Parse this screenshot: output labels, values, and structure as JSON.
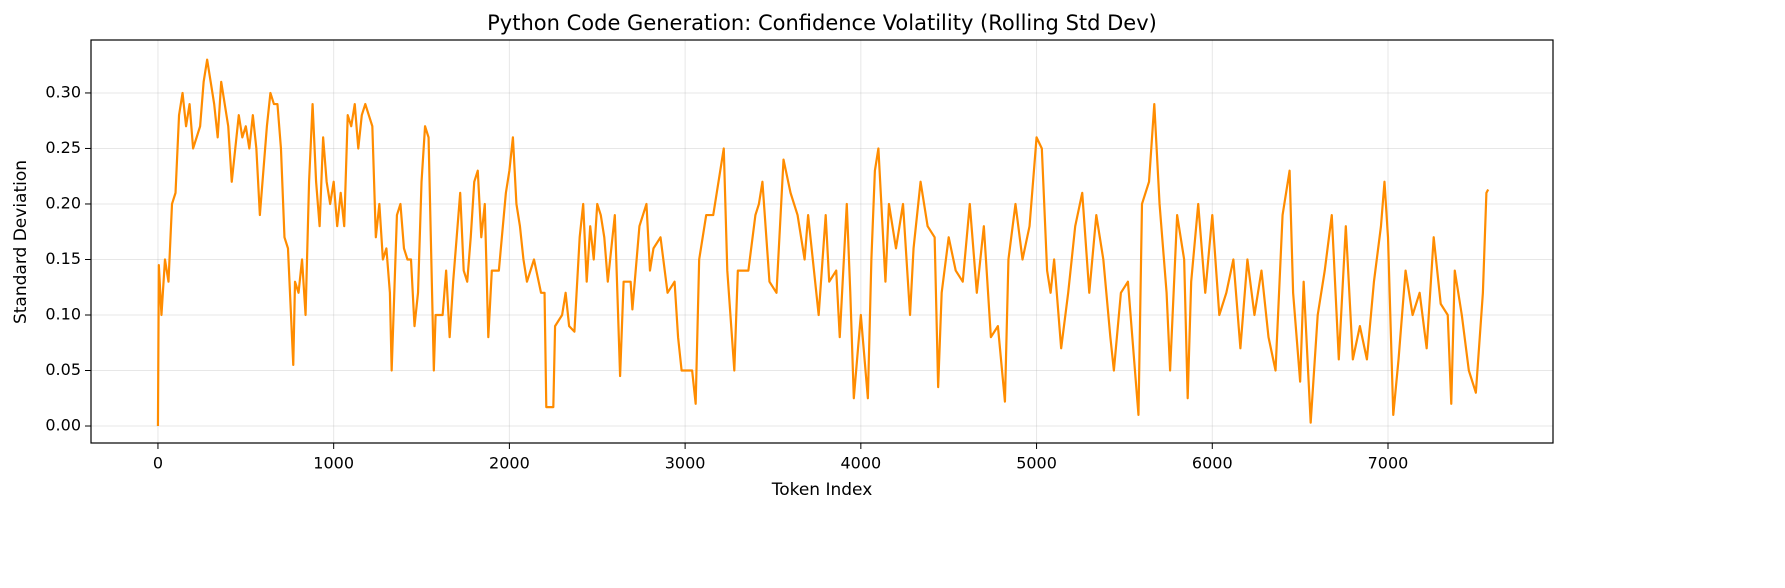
{
  "chart_data": {
    "type": "line",
    "title": "Python Code Generation: Confidence Volatility (Rolling Std Dev)",
    "x_label": "Token Index",
    "y_label": "Standard Deviation",
    "color": "#ff8c00",
    "grid": true,
    "xlim": [
      -381,
      7939
    ],
    "ylim": [
      -0.0153,
      0.3477
    ],
    "xticks": [
      0,
      1000,
      2000,
      3000,
      4000,
      5000,
      6000,
      7000
    ],
    "yticks": [
      {
        "value": 0,
        "label": "0.00"
      },
      0.05,
      {
        "value": 0.1,
        "label": "0.10"
      },
      0.15,
      {
        "value": 0.2,
        "label": "0.20"
      },
      0.25,
      {
        "value": 0.3,
        "label": "0.30"
      }
    ],
    "x": [
      0,
      5,
      20,
      40,
      60,
      80,
      100,
      120,
      140,
      160,
      180,
      200,
      220,
      240,
      260,
      280,
      300,
      320,
      340,
      360,
      380,
      400,
      420,
      440,
      460,
      480,
      500,
      520,
      540,
      560,
      580,
      600,
      620,
      640,
      660,
      680,
      700,
      720,
      740,
      760,
      770,
      780,
      800,
      820,
      840,
      860,
      880,
      900,
      920,
      940,
      960,
      980,
      1000,
      1020,
      1040,
      1060,
      1080,
      1100,
      1120,
      1140,
      1160,
      1180,
      1200,
      1220,
      1240,
      1260,
      1280,
      1300,
      1320,
      1330,
      1360,
      1380,
      1400,
      1420,
      1440,
      1460,
      1480,
      1500,
      1520,
      1540,
      1560,
      1570,
      1580,
      1620,
      1640,
      1660,
      1680,
      1700,
      1720,
      1740,
      1760,
      1780,
      1800,
      1820,
      1840,
      1860,
      1880,
      1900,
      1940,
      1980,
      2000,
      2020,
      2040,
      2060,
      2080,
      2100,
      2140,
      2180,
      2200,
      2210,
      2250,
      2260,
      2300,
      2320,
      2340,
      2370,
      2400,
      2420,
      2440,
      2460,
      2480,
      2500,
      2520,
      2540,
      2560,
      2600,
      2630,
      2650,
      2690,
      2700,
      2740,
      2780,
      2800,
      2820,
      2860,
      2900,
      2940,
      2960,
      2980,
      3040,
      3060,
      3080,
      3120,
      3160,
      3180,
      3220,
      3240,
      3280,
      3300,
      3360,
      3400,
      3420,
      3440,
      3480,
      3520,
      3560,
      3600,
      3640,
      3680,
      3700,
      3760,
      3800,
      3820,
      3860,
      3880,
      3920,
      3940,
      3960,
      4000,
      4040,
      4060,
      4080,
      4100,
      4140,
      4160,
      4200,
      4240,
      4280,
      4300,
      4340,
      4380,
      4420,
      4440,
      4460,
      4500,
      4540,
      4580,
      4620,
      4660,
      4700,
      4740,
      4780,
      4820,
      4840,
      4880,
      4920,
      4960,
      5000,
      5030,
      5060,
      5080,
      5100,
      5140,
      5180,
      5220,
      5260,
      5300,
      5340,
      5380,
      5420,
      5440,
      5480,
      5520,
      5580,
      5600,
      5640,
      5670,
      5700,
      5740,
      5760,
      5800,
      5840,
      5860,
      5880,
      5920,
      5960,
      6000,
      6040,
      6080,
      6120,
      6160,
      6200,
      6240,
      6280,
      6320,
      6360,
      6400,
      6440,
      6460,
      6500,
      6520,
      6560,
      6600,
      6640,
      6680,
      6720,
      6760,
      6800,
      6840,
      6880,
      6920,
      6960,
      6980,
      7000,
      7030,
      7060,
      7100,
      7140,
      7180,
      7220,
      7260,
      7300,
      7340,
      7360,
      7380,
      7420,
      7460,
      7500,
      7540,
      7560,
      7570
    ],
    "values": [
      0.0,
      0.145,
      0.1,
      0.15,
      0.13,
      0.2,
      0.21,
      0.28,
      0.3,
      0.27,
      0.29,
      0.25,
      0.26,
      0.27,
      0.31,
      0.33,
      0.31,
      0.29,
      0.26,
      0.31,
      0.29,
      0.27,
      0.22,
      0.25,
      0.28,
      0.26,
      0.27,
      0.25,
      0.28,
      0.25,
      0.19,
      0.23,
      0.27,
      0.3,
      0.29,
      0.29,
      0.25,
      0.17,
      0.16,
      0.09,
      0.055,
      0.13,
      0.12,
      0.15,
      0.1,
      0.22,
      0.29,
      0.22,
      0.18,
      0.26,
      0.22,
      0.2,
      0.22,
      0.18,
      0.21,
      0.18,
      0.28,
      0.27,
      0.29,
      0.25,
      0.28,
      0.29,
      0.28,
      0.27,
      0.17,
      0.2,
      0.15,
      0.16,
      0.12,
      0.05,
      0.19,
      0.2,
      0.16,
      0.15,
      0.15,
      0.09,
      0.12,
      0.22,
      0.27,
      0.26,
      0.12,
      0.05,
      0.1,
      0.1,
      0.14,
      0.08,
      0.13,
      0.17,
      0.21,
      0.14,
      0.13,
      0.17,
      0.22,
      0.23,
      0.17,
      0.2,
      0.08,
      0.14,
      0.14,
      0.21,
      0.23,
      0.26,
      0.2,
      0.18,
      0.15,
      0.13,
      0.15,
      0.12,
      0.12,
      0.017,
      0.017,
      0.09,
      0.1,
      0.12,
      0.09,
      0.085,
      0.17,
      0.2,
      0.13,
      0.18,
      0.15,
      0.2,
      0.19,
      0.17,
      0.13,
      0.19,
      0.045,
      0.13,
      0.13,
      0.105,
      0.18,
      0.2,
      0.14,
      0.16,
      0.17,
      0.12,
      0.13,
      0.08,
      0.05,
      0.05,
      0.02,
      0.15,
      0.19,
      0.19,
      0.21,
      0.25,
      0.14,
      0.05,
      0.14,
      0.14,
      0.19,
      0.2,
      0.22,
      0.13,
      0.12,
      0.24,
      0.21,
      0.19,
      0.15,
      0.19,
      0.1,
      0.19,
      0.13,
      0.14,
      0.08,
      0.2,
      0.12,
      0.025,
      0.1,
      0.025,
      0.15,
      0.23,
      0.25,
      0.13,
      0.2,
      0.16,
      0.2,
      0.1,
      0.16,
      0.22,
      0.18,
      0.17,
      0.035,
      0.12,
      0.17,
      0.14,
      0.13,
      0.2,
      0.12,
      0.18,
      0.08,
      0.09,
      0.022,
      0.15,
      0.2,
      0.15,
      0.18,
      0.26,
      0.25,
      0.14,
      0.12,
      0.15,
      0.07,
      0.12,
      0.18,
      0.21,
      0.12,
      0.19,
      0.15,
      0.08,
      0.05,
      0.12,
      0.13,
      0.01,
      0.2,
      0.22,
      0.29,
      0.2,
      0.12,
      0.05,
      0.19,
      0.15,
      0.025,
      0.13,
      0.2,
      0.12,
      0.19,
      0.1,
      0.12,
      0.15,
      0.07,
      0.15,
      0.1,
      0.14,
      0.08,
      0.05,
      0.19,
      0.23,
      0.12,
      0.04,
      0.13,
      0.003,
      0.1,
      0.14,
      0.19,
      0.06,
      0.18,
      0.06,
      0.09,
      0.06,
      0.13,
      0.18,
      0.22,
      0.17,
      0.01,
      0.06,
      0.14,
      0.1,
      0.12,
      0.07,
      0.17,
      0.11,
      0.1,
      0.02,
      0.14,
      0.1,
      0.05,
      0.03,
      0.12,
      0.21,
      0.213
    ]
  }
}
